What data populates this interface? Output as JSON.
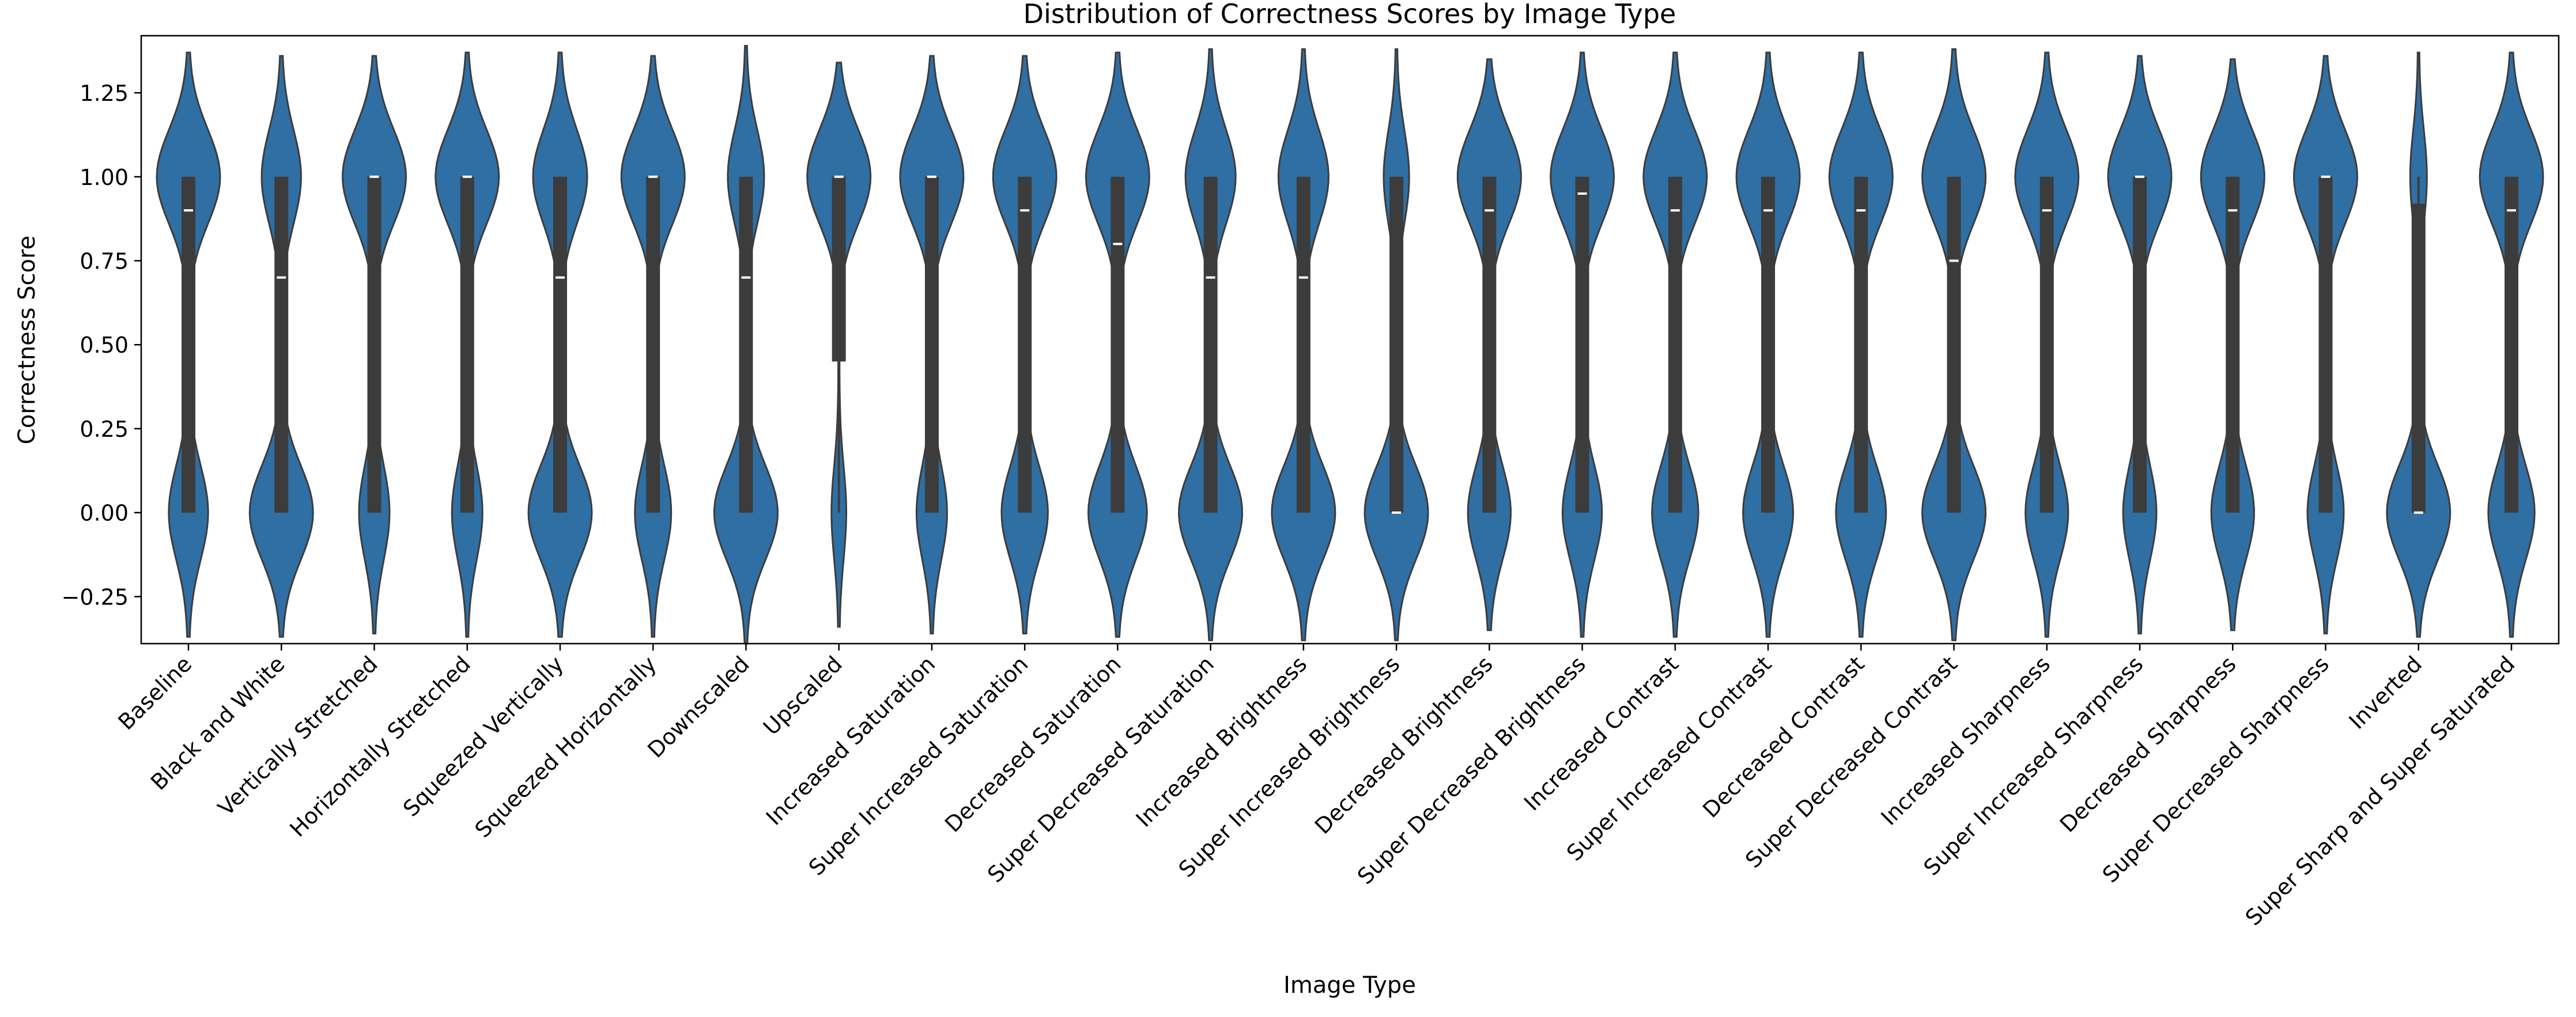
{
  "chart_data": {
    "type": "violin",
    "title": "Distribution of Correctness Scores by Image Type",
    "xlabel": "Image Type",
    "ylabel": "Correctness Score",
    "ylim": [
      -0.39,
      1.42
    ],
    "yticks": [
      -0.25,
      0.0,
      0.25,
      0.5,
      0.75,
      1.0,
      1.25
    ],
    "ytick_labels": [
      "−0.25",
      "0.00",
      "0.25",
      "0.50",
      "0.75",
      "1.00",
      "1.25"
    ],
    "grid": false,
    "legend": "none",
    "color": "#2f6fa4",
    "categories": [
      "Baseline",
      "Black and White",
      "Vertically Stretched",
      "Horizontally Stretched",
      "Squeezed Vertically",
      "Squeezed Horizontally",
      "Downscaled",
      "Upscaled",
      "Increased Saturation",
      "Super Increased Saturation",
      "Decreased Saturation",
      "Super Decreased Saturation",
      "Increased Brightness",
      "Super Increased Brightness",
      "Decreased Brightness",
      "Super Decreased Brightness",
      "Increased Contrast",
      "Super Increased Contrast",
      "Decreased Contrast",
      "Super Decreased Contrast",
      "Increased Sharpness",
      "Super Increased Sharpness",
      "Decreased Sharpness",
      "Super Decreased Sharpness",
      "Inverted",
      "Super Sharp and Super Saturated"
    ],
    "medians": [
      0.9,
      0.7,
      1.0,
      1.0,
      0.7,
      1.0,
      0.7,
      1.0,
      1.0,
      0.9,
      0.8,
      0.7,
      0.7,
      0.0,
      0.9,
      0.95,
      0.9,
      0.9,
      0.9,
      0.75,
      0.9,
      1.0,
      0.9,
      1.0,
      0.0,
      0.9
    ],
    "q1": [
      0.0,
      0.0,
      0.0,
      0.0,
      0.0,
      0.0,
      0.0,
      0.45,
      0.0,
      0.0,
      0.0,
      0.0,
      0.0,
      0.0,
      0.0,
      0.0,
      0.0,
      0.0,
      0.0,
      0.0,
      0.0,
      0.0,
      0.0,
      0.0,
      0.0,
      0.0
    ],
    "q3": [
      1.0,
      1.0,
      1.0,
      1.0,
      1.0,
      1.0,
      1.0,
      1.0,
      1.0,
      1.0,
      1.0,
      1.0,
      1.0,
      1.0,
      1.0,
      1.0,
      1.0,
      1.0,
      1.0,
      1.0,
      1.0,
      1.0,
      1.0,
      1.0,
      0.92,
      1.0
    ],
    "whisker_low": [
      0.0,
      0.0,
      0.0,
      0.0,
      0.0,
      0.0,
      0.0,
      0.0,
      0.0,
      0.0,
      0.0,
      0.0,
      0.0,
      0.0,
      0.0,
      0.0,
      0.0,
      0.0,
      0.0,
      0.0,
      0.0,
      0.0,
      0.0,
      0.0,
      0.0,
      0.0
    ],
    "whisker_high": [
      1.0,
      1.0,
      1.0,
      1.0,
      1.0,
      1.0,
      1.0,
      1.0,
      1.0,
      1.0,
      1.0,
      1.0,
      1.0,
      1.0,
      1.0,
      1.0,
      1.0,
      1.0,
      1.0,
      1.0,
      1.0,
      1.0,
      1.0,
      1.0,
      1.0,
      1.0
    ],
    "violin_min": [
      -0.37,
      -0.37,
      -0.36,
      -0.37,
      -0.37,
      -0.37,
      -0.39,
      -0.34,
      -0.36,
      -0.36,
      -0.37,
      -0.38,
      -0.38,
      -0.38,
      -0.35,
      -0.37,
      -0.37,
      -0.37,
      -0.37,
      -0.38,
      -0.37,
      -0.36,
      -0.35,
      -0.36,
      -0.37,
      -0.37
    ],
    "violin_max": [
      1.37,
      1.36,
      1.36,
      1.37,
      1.37,
      1.36,
      1.39,
      1.34,
      1.36,
      1.36,
      1.37,
      1.38,
      1.38,
      1.38,
      1.35,
      1.37,
      1.37,
      1.37,
      1.37,
      1.38,
      1.37,
      1.36,
      1.35,
      1.36,
      1.37,
      1.37
    ],
    "weight_high": [
      0.62,
      0.38,
      0.68,
      0.68,
      0.46,
      0.64,
      0.36,
      0.82,
      0.68,
      0.58,
      0.52,
      0.44,
      0.44,
      0.28,
      0.6,
      0.62,
      0.58,
      0.56,
      0.56,
      0.5,
      0.6,
      0.66,
      0.6,
      0.64,
      0.2,
      0.58
    ],
    "weight_low": [
      0.38,
      0.62,
      0.32,
      0.32,
      0.54,
      0.36,
      0.64,
      0.18,
      0.32,
      0.42,
      0.48,
      0.56,
      0.56,
      0.72,
      0.4,
      0.38,
      0.42,
      0.44,
      0.44,
      0.5,
      0.4,
      0.34,
      0.4,
      0.36,
      0.8,
      0.42
    ]
  }
}
